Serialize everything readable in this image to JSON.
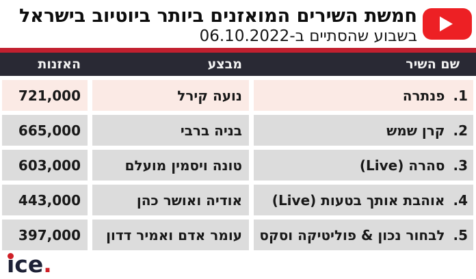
{
  "header": {
    "title": "חמשת השירים המואזנים ביותר ביוטיוב בישראל",
    "subtitle": "בשבוע שהסתיים ב-06.10.2022",
    "youtube_icon": "youtube-play-icon"
  },
  "table": {
    "columns": [
      {
        "key": "song",
        "label": "שם השיר"
      },
      {
        "key": "performer",
        "label": "מבצע"
      },
      {
        "key": "listens",
        "label": "האזנות"
      }
    ],
    "rows": [
      {
        "rank": "1.",
        "song": "פנתרה",
        "performer": "נועה קירל",
        "listens": "721,000",
        "highlight": true
      },
      {
        "rank": "2.",
        "song": "קרן שמש",
        "performer": "בניה ברבי",
        "listens": "665,000",
        "highlight": false
      },
      {
        "rank": "3.",
        "song": "סהרה (Live)",
        "performer": "טונה ויסמין מועלם",
        "listens": "603,000",
        "highlight": false
      },
      {
        "rank": "4.",
        "song": "אוהבת אותך בטעות (Live)",
        "performer": "אודיה ואושר כהן",
        "listens": "443,000",
        "highlight": false
      },
      {
        "rank": "5.",
        "song": "לבחור נכון & פוליטיקה וסקס",
        "performer": "עומר אדם ואמיר דדון",
        "listens": "397,000",
        "highlight": false
      }
    ]
  },
  "footer": {
    "logo_text": "ice",
    "logo_dot": "."
  },
  "colors": {
    "accent_red": "#c2202f",
    "youtube_red": "#ed2024",
    "header_bg": "#292934",
    "row_highlight": "#fbeae5",
    "row_gray": "#dcdcdc",
    "logo_navy": "#1d2136",
    "logo_red": "#cf2027"
  },
  "chart_data": {
    "type": "table",
    "title": "חמשת השירים המואזנים ביותר ביוטיוב בישראל",
    "subtitle": "בשבוע שהסתיים ב-06.10.2022",
    "columns": [
      "שם השיר",
      "מבצע",
      "האזנות"
    ],
    "rows": [
      [
        "פנתרה",
        "נועה קירל",
        721000
      ],
      [
        "קרן שמש",
        "בניה ברבי",
        665000
      ],
      [
        "סהרה (Live)",
        "טונה ויסמין מועלם",
        603000
      ],
      [
        "אוהבת אותך בטעות (Live)",
        "אודיה ואושר כהן",
        443000
      ],
      [
        "לבחור נכון & פוליטיקה וסקס",
        "עומר אדם ואמיר דדון",
        397000
      ]
    ]
  }
}
